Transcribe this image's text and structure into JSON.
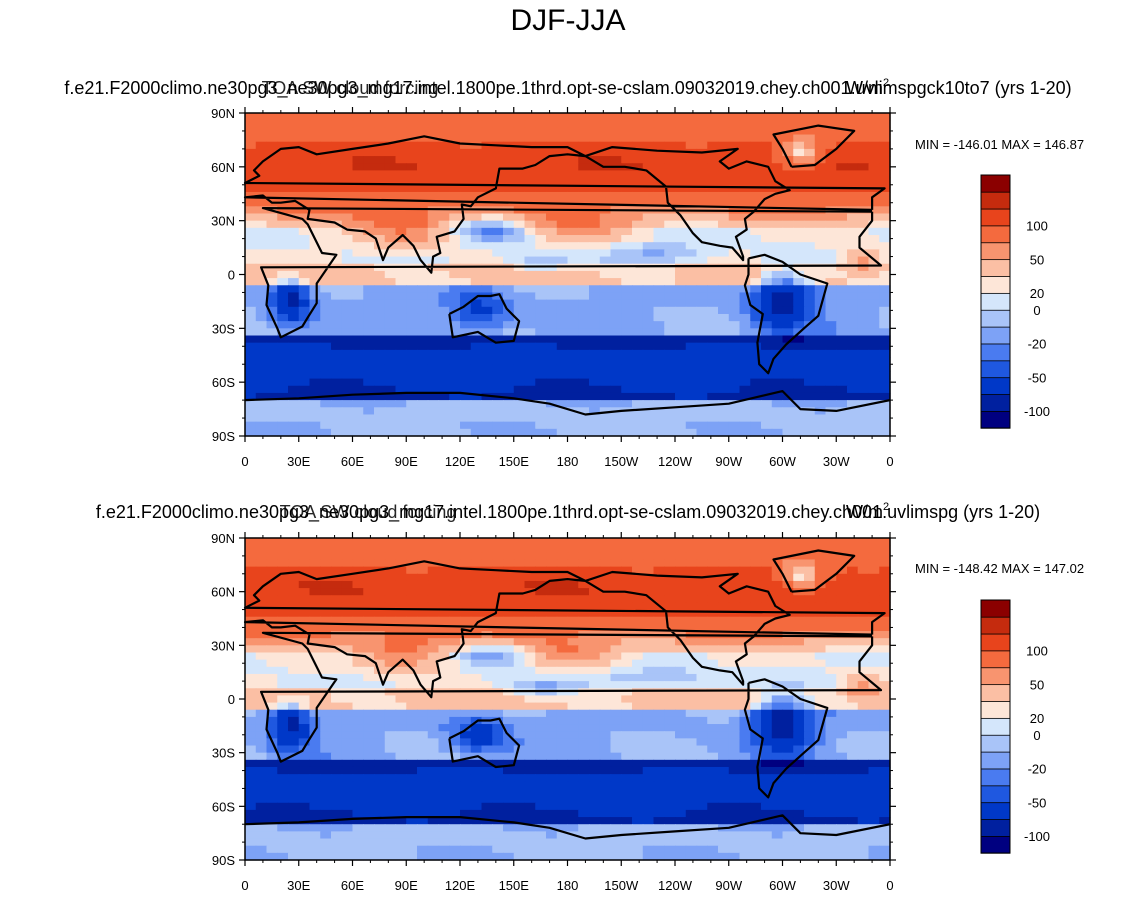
{
  "figure": {
    "title": "DJF-JJA"
  },
  "chart_data": [
    {
      "type": "heatmap",
      "case_name": "f.e21.F2000climo.ne30pg3_ne30pg3_mg17.intel.1800pe.1thrd.opt-se-cslam.09032019.chey.ch001.uvlimspgck10to7 (yrs 1-20)",
      "variable": "TOA SW cloud forcing",
      "units": "W/m",
      "units_sup": "2",
      "min_max": "MIN = -146.01  MAX = 146.87",
      "yticks": [
        "90N",
        "60N",
        "30N",
        "0",
        "30S",
        "60S",
        "90S"
      ],
      "xticks": [
        "0",
        "30E",
        "60E",
        "90E",
        "120E",
        "150E",
        "180",
        "150W",
        "120W",
        "90W",
        "60W",
        "30W",
        "0"
      ],
      "xlim": [
        0,
        360
      ],
      "ylim": [
        -90,
        90
      ],
      "colorbar_labels": [
        "100",
        "50",
        "20",
        "0",
        "-20",
        "-50",
        "-100"
      ]
    },
    {
      "type": "heatmap",
      "case_name": "f.e21.F2000climo.ne30pg3_ne30pg3_mg17.intel.1800pe.1thrd.opt-se-cslam.09032019.chey.ch001.uvlimspg (yrs 1-20)",
      "variable": "TOA SW cloud forcing",
      "units": "W/m",
      "units_sup": "2",
      "min_max": "MIN = -148.42  MAX = 147.02",
      "yticks": [
        "90N",
        "60N",
        "30N",
        "0",
        "30S",
        "60S",
        "90S"
      ],
      "xticks": [
        "0",
        "30E",
        "60E",
        "90E",
        "120E",
        "150E",
        "180",
        "150W",
        "120W",
        "90W",
        "60W",
        "30W",
        "0"
      ],
      "xlim": [
        0,
        360
      ],
      "ylim": [
        -90,
        90
      ],
      "colorbar_labels": [
        "100",
        "50",
        "20",
        "0",
        "-20",
        "-50",
        "-100"
      ]
    }
  ],
  "colors": {
    "levels": [
      "#000080",
      "#00209f",
      "#0038c8",
      "#1f58e0",
      "#4a7bf0",
      "#7da2f6",
      "#a9c4f8",
      "#d4e6fb",
      "#fde6d8",
      "#fbbfa4",
      "#f8946f",
      "#f46a3e",
      "#e8441c",
      "#c52b0e",
      "#8b0000"
    ],
    "coast": "#000000",
    "axis": "#000000"
  }
}
